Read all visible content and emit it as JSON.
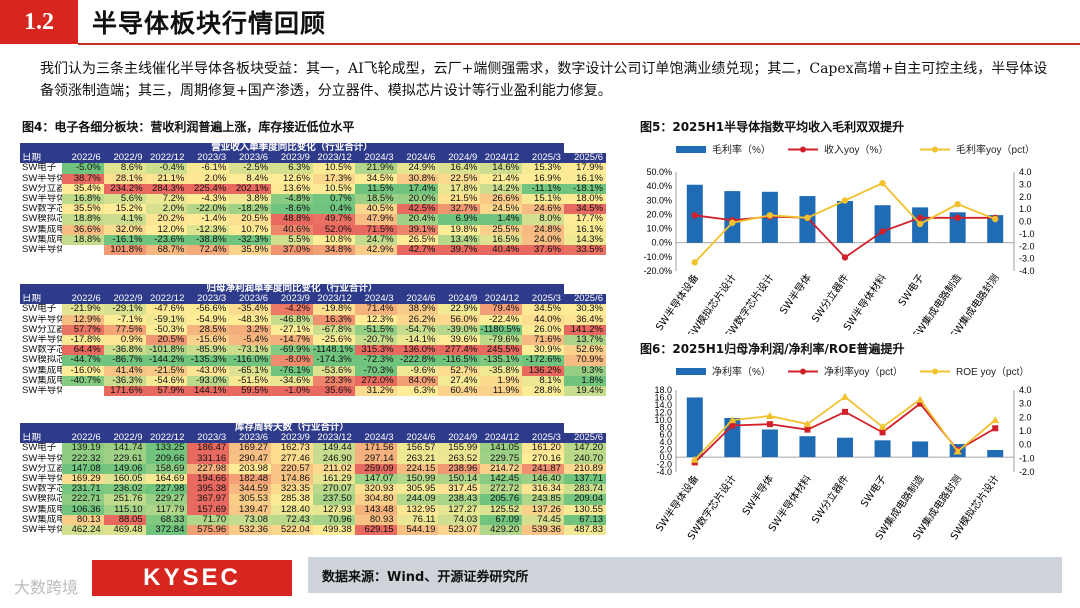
{
  "header": {
    "num": "1.2",
    "title": "半导体板块行情回顾"
  },
  "intro": "我们认为三条主线催化半导体各板块受益：其一，AI飞轮成型，云厂+端侧强需求，数字设计公司订单饱满业绩兑现；其二，Capex高增+自主可控主线，半导体设备领涨制造端；其三，周期修复+国产渗透，分立器件、模拟芯片设计等行业盈利能力修复。",
  "fig4": {
    "title": "图4：电子各细分板块：营收利润普遍上涨，库存接近低位水平"
  },
  "fig5": {
    "title": "图5：2025H1半导体指数平均收入毛利双双提升"
  },
  "fig6": {
    "title": "图6：2025H1归母净利润/净利率/ROE普遍提升"
  },
  "source": "数据来源：Wind、开源证券研究所",
  "logo": "KYSEC",
  "watermark": "大数跨境",
  "tables": [
    {
      "caption": "营业收入单季度同比变化（行业合计）",
      "head": [
        "日期",
        "2022/6",
        "2022/9",
        "2022/12",
        "2023/3",
        "2023/6",
        "2023/9",
        "2023/12",
        "2024/3",
        "2024/6",
        "2024/9",
        "2024/12",
        "2025/3",
        "2025/6"
      ],
      "rows": [
        [
          "SW电子",
          "-5.0%",
          "8.6%",
          "-0.4%",
          "-6.1%",
          "-2.5%",
          "6.3%",
          "10.5%",
          "21.9%",
          "24.9%",
          "16.4%",
          "14.6%",
          "15.3%",
          "17.9%"
        ],
        [
          "SW半导体",
          "38.7%",
          "28.1%",
          "21.1%",
          "2.0%",
          "8.4%",
          "12.6%",
          "17.3%",
          "34.5%",
          "30.8%",
          "22.5%",
          "21.4%",
          "16.9%",
          "16.1%"
        ],
        [
          "SW分立器件",
          "35.4%",
          "234.2%",
          "284.3%",
          "225.4%",
          "202.1%",
          "13.6%",
          "10.5%",
          "11.5%",
          "17.4%",
          "17.8%",
          "14.2%",
          "-11.1%",
          "-18.1%"
        ],
        [
          "SW半导体材料",
          "16.8%",
          "5.6%",
          "7.2%",
          "-4.3%",
          "3.8%",
          "-4.8%",
          "0.7%",
          "18.5%",
          "20.0%",
          "21.5%",
          "26.6%",
          "15.1%",
          "18.0%"
        ],
        [
          "SW数字芯片设计",
          "35.5%",
          "15.2%",
          "2.0%",
          "-22.0%",
          "-18.2%",
          "-8.6%",
          "0.4%",
          "40.5%",
          "42.5%",
          "32.7%",
          "24.5%",
          "24.6%",
          "34.5%"
        ],
        [
          "SW模拟芯片设计",
          "18.8%",
          "4.1%",
          "20.2%",
          "-1.4%",
          "20.5%",
          "48.8%",
          "49.7%",
          "47.9%",
          "20.4%",
          "6.9%",
          "1.4%",
          "8.0%",
          "17.7%"
        ],
        [
          "SW集成电路制造",
          "36.6%",
          "32.0%",
          "12.0%",
          "-12.3%",
          "10.7%",
          "40.6%",
          "52.0%",
          "71.5%",
          "39.1%",
          "19.8%",
          "25.5%",
          "24.8%",
          "16.1%"
        ],
        [
          "SW集成电路封测",
          "18.8%",
          "-16.1%",
          "-23.6%",
          "-38.8%",
          "-32.3%",
          "5.5%",
          "10.8%",
          "24.7%",
          "26.5%",
          "13.4%",
          "16.5%",
          "24.0%",
          "14.3%"
        ],
        [
          "SW半导体设备",
          "",
          "101.8%",
          "68.7%",
          "72.4%",
          "35.9%",
          "37.0%",
          "34.8%",
          "42.9%",
          "42.7%",
          "39.7%",
          "40.4%",
          "37.6%",
          "33.5%"
        ]
      ]
    },
    {
      "caption": "归母净利润单季度同比变化（行业合计）",
      "head": [
        "日期",
        "2022/6",
        "2022/9",
        "2022/12",
        "2023/3",
        "2023/6",
        "2023/9",
        "2023/12",
        "2024/3",
        "2024/6",
        "2024/9",
        "2024/12",
        "2025/3",
        "2025/6"
      ],
      "rows": [
        [
          "SW电子",
          "-21.9%",
          "-29.1%",
          "-47.6%",
          "-56.6%",
          "-35.4%",
          "-4.2%",
          "-19.8%",
          "71.4%",
          "38.9%",
          "22.9%",
          "79.4%",
          "34.5%",
          "30.3%"
        ],
        [
          "SW半导体",
          "12.9%",
          "-7.1%",
          "-59.1%",
          "-54.9%",
          "-48.3%",
          "-46.8%",
          "16.3%",
          "12.3%",
          "26.2%",
          "56.0%",
          "-22.4%",
          "44.0%",
          "36.4%"
        ],
        [
          "SW分立器件",
          "57.7%",
          "77.5%",
          "-50.3%",
          "28.5%",
          "3.2%",
          "-27.1%",
          "-67.8%",
          "-51.5%",
          "-54.7%",
          "-39.0%",
          "-1180.5%",
          "26.0%",
          "141.2%"
        ],
        [
          "SW半导体材料",
          "-17.8%",
          "0.9%",
          "20.5%",
          "-15.6%",
          "-5.4%",
          "-14.7%",
          "-25.6%",
          "-20.7%",
          "-14.1%",
          "39.6%",
          "-79.6%",
          "71.6%",
          "13.7%"
        ],
        [
          "SW数字芯片设计",
          "64.4%",
          "-36.8%",
          "-101.8%",
          "-85.9%",
          "-73.1%",
          "-69.9%",
          "-1148.1%",
          "315.3%",
          "136.0%",
          "277.4%",
          "245.5%",
          "30.9%",
          "52.6%"
        ],
        [
          "SW模拟芯片设计",
          "-44.7%",
          "-86.7%",
          "-144.2%",
          "-135.3%",
          "-116.0%",
          "-8.0%",
          "-174.3%",
          "-72.3%",
          "-222.8%",
          "-116.5%",
          "-135.1%",
          "-172.6%",
          "70.9%"
        ],
        [
          "SW集成电路制造",
          "-16.0%",
          "41.4%",
          "-21.5%",
          "-43.0%",
          "-65.1%",
          "-76.1%",
          "-53.6%",
          "-70.3%",
          "-9.6%",
          "52.7%",
          "-35.8%",
          "136.2%",
          "9.3%"
        ],
        [
          "SW集成电路封测",
          "-40.7%",
          "-36.3%",
          "-54.6%",
          "-93.0%",
          "-51.5%",
          "-34.6%",
          "23.3%",
          "272.0%",
          "84.0%",
          "27.4%",
          "1.9%",
          "8.1%",
          "1.8%"
        ],
        [
          "SW半导体设备",
          "",
          "171.6%",
          "57.9%",
          "144.1%",
          "59.5%",
          "-1.0%",
          "35.6%",
          "31.2%",
          "6.3%",
          "60.4%",
          "11.9%",
          "28.8%",
          "19.4%"
        ]
      ]
    },
    {
      "caption": "库存周转天数（行业合计）",
      "head": [
        "日期",
        "2022/6",
        "2022/9",
        "2022/12",
        "2023/3",
        "2023/6",
        "2023/9",
        "2023/12",
        "2024/3",
        "2024/6",
        "2024/9",
        "2024/12",
        "2025/3",
        "2025/6"
      ],
      "rows": [
        [
          "SW电子",
          "139.19",
          "141.74",
          "133.25",
          "186.47",
          "169.27",
          "162.73",
          "149.44",
          "171.56",
          "156.57",
          "155.99",
          "141.05",
          "161.20",
          "147.20"
        ],
        [
          "SW半导体",
          "222.32",
          "229.61",
          "209.66",
          "331.16",
          "290.47",
          "277.46",
          "246.90",
          "297.14",
          "263.21",
          "263.52",
          "229.75",
          "270.16",
          "240.70"
        ],
        [
          "SW分立器件",
          "147.08",
          "149.06",
          "158.69",
          "227.98",
          "203.98",
          "220.57",
          "211.02",
          "259.09",
          "224.15",
          "238.96",
          "214.72",
          "241.87",
          "210.89"
        ],
        [
          "SW半导体材料",
          "169.29",
          "160.05",
          "164.69",
          "194.66",
          "182.48",
          "174.86",
          "161.29",
          "147.07",
          "150.99",
          "150.14",
          "142.45",
          "146.40",
          "137.71"
        ],
        [
          "SW数字芯片设计",
          "231.71",
          "236.02",
          "227.98",
          "395.38",
          "344.59",
          "323.35",
          "270.07",
          "320.93",
          "305.95",
          "317.45",
          "272.72",
          "316.34",
          "283.74"
        ],
        [
          "SW模拟芯片设计",
          "222.71",
          "251.76",
          "229.27",
          "367.97",
          "305.53",
          "285.38",
          "237.50",
          "304.80",
          "244.09",
          "238.43",
          "205.76",
          "243.85",
          "209.04"
        ],
        [
          "SW集成电路制造",
          "106.36",
          "115.10",
          "117.79",
          "157.69",
          "139.47",
          "128.40",
          "127.93",
          "143.48",
          "132.95",
          "127.27",
          "125.52",
          "137.26",
          "130.55"
        ],
        [
          "SW集成电路封测",
          "80.13",
          "88.05",
          "68.33",
          "71.70",
          "73.08",
          "72.43",
          "70.96",
          "80.93",
          "76.11",
          "74.03",
          "67.09",
          "74.45",
          "67.13"
        ],
        [
          "SW半导体设备",
          "462.24",
          "469.48",
          "372.84",
          "575.96",
          "532.36",
          "522.04",
          "499.38",
          "629.15",
          "544.19",
          "523.07",
          "429.20",
          "539.36",
          "487.83"
        ]
      ]
    }
  ],
  "chart_data": [
    {
      "type": "bar+line",
      "title": "2025H1半导体指数平均收入毛利双双提升",
      "categories": [
        "SW半导体设备",
        "SW模拟芯片设计",
        "SW数字芯片设计",
        "SW半导体",
        "SW分立器件",
        "SW半导体材料",
        "SW电子",
        "SW集成电路制造",
        "SW集成电路封测"
      ],
      "series": [
        {
          "name": "毛利率（%）",
          "type": "bar",
          "axis": "left",
          "color": "#1f6cb5",
          "values": [
            41.0,
            36.5,
            36.0,
            33.0,
            29.5,
            26.5,
            25.0,
            21.5,
            19.5
          ]
        },
        {
          "name": "收入yoy（%）",
          "type": "line",
          "axis": "right",
          "color": "#d0202a",
          "values": [
            0.5,
            0.1,
            0.4,
            0.3,
            -2.9,
            -0.8,
            0.3,
            0.3,
            0.3
          ]
        },
        {
          "name": "毛利率yoy（pct）",
          "type": "line",
          "axis": "right",
          "color": "#f2c12e",
          "values": [
            -3.3,
            -0.1,
            0.5,
            0.3,
            1.7,
            3.1,
            -0.2,
            1.4,
            0.2
          ]
        }
      ],
      "yleft": {
        "min": -20,
        "max": 50,
        "ticks": [
          "50.0%",
          "40.0%",
          "30.0%",
          "20.0%",
          "10.0%",
          "0.0%",
          "-10.0%",
          "-20.0%"
        ]
      },
      "yright": {
        "min": -4,
        "max": 4,
        "ticks": [
          "4.0",
          "3.0",
          "2.0",
          "1.0",
          "0.0",
          "-1.0",
          "-2.0",
          "-3.0",
          "-4.0"
        ]
      }
    },
    {
      "type": "bar+line",
      "title": "2025H1归母净利润/净利率/ROE普遍提升",
      "categories": [
        "SW半导体设备",
        "SW数字芯片设计",
        "SW半导体",
        "SW半导体材料",
        "SW分立器件",
        "SW电子",
        "SW集成电路制造",
        "SW集成电路封测",
        "SW模拟芯片设计"
      ],
      "series": [
        {
          "name": "净利率（%）",
          "type": "bar",
          "axis": "left",
          "color": "#1f6cb5",
          "values": [
            16.0,
            10.5,
            7.4,
            5.6,
            5.2,
            4.5,
            4.2,
            3.5,
            1.9
          ]
        },
        {
          "name": "净利率yoy（pct）",
          "type": "line",
          "axis": "right",
          "color": "#d0202a",
          "values": [
            -1.3,
            1.4,
            1.5,
            1.1,
            2.4,
            0.9,
            3.0,
            -0.4,
            1.2
          ]
        },
        {
          "name": "ROE yoy（pct）",
          "type": "line",
          "axis": "right",
          "color": "#f2c12e",
          "values": [
            -1.1,
            1.8,
            2.1,
            1.5,
            3.5,
            1.3,
            3.3,
            -0.5,
            1.8
          ]
        }
      ],
      "yleft": {
        "min": -4,
        "max": 18,
        "ticks": [
          "18.0",
          "16.0",
          "14.0",
          "12.0",
          "10.0",
          "8.0",
          "6.0",
          "4.0",
          "2.0",
          "0.0",
          "-2.0",
          "-4.0"
        ]
      },
      "yright": {
        "min": -2,
        "max": 4,
        "ticks": [
          "4.0",
          "3.0",
          "2.0",
          "1.0",
          "0.0",
          "-1.0",
          "-2.0"
        ]
      }
    }
  ]
}
